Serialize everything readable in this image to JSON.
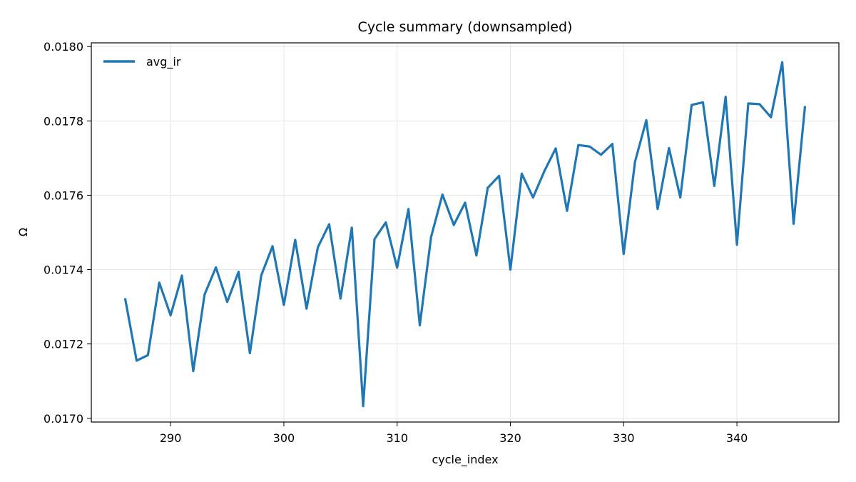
{
  "chart_data": {
    "type": "line",
    "title": "Cycle summary (downsampled)",
    "xlabel": "cycle_index",
    "ylabel": "Ω",
    "xlim": [
      283,
      349
    ],
    "ylim": [
      0.01699,
      0.01801
    ],
    "xticks": [
      290,
      300,
      310,
      320,
      330,
      340
    ],
    "xtick_labels": [
      "290",
      "300",
      "310",
      "320",
      "330",
      "340"
    ],
    "yticks": [
      0.017,
      0.0172,
      0.0174,
      0.0176,
      0.0178,
      0.018
    ],
    "ytick_labels": [
      "0.0170",
      "0.0172",
      "0.0174",
      "0.0176",
      "0.0178",
      "0.0180"
    ],
    "grid": true,
    "legend_position": "top-left",
    "colors": {
      "series": "#1f77b4",
      "grid": "#e6e6e6",
      "axes": "#000000"
    },
    "series": [
      {
        "name": "avg_ir",
        "x": [
          286,
          287,
          288,
          289,
          290,
          291,
          292,
          293,
          294,
          295,
          296,
          297,
          298,
          299,
          300,
          301,
          302,
          303,
          304,
          305,
          306,
          307,
          308,
          309,
          310,
          311,
          312,
          313,
          314,
          315,
          316,
          317,
          318,
          319,
          320,
          321,
          322,
          323,
          324,
          325,
          326,
          327,
          328,
          329,
          330,
          331,
          332,
          333,
          334,
          335,
          336,
          337,
          338,
          339,
          340,
          341,
          342,
          343,
          344,
          345,
          346
        ],
        "values": [
          0.01732,
          0.017155,
          0.01717,
          0.017365,
          0.017277,
          0.017384,
          0.017127,
          0.017333,
          0.017406,
          0.017313,
          0.017394,
          0.017175,
          0.017384,
          0.017463,
          0.017305,
          0.01748,
          0.017295,
          0.01746,
          0.017522,
          0.017322,
          0.017513,
          0.017033,
          0.017482,
          0.017527,
          0.017405,
          0.017563,
          0.01725,
          0.017488,
          0.017602,
          0.01752,
          0.01758,
          0.017438,
          0.01762,
          0.017652,
          0.0174,
          0.017658,
          0.017594,
          0.017665,
          0.017726,
          0.017558,
          0.017735,
          0.017731,
          0.017709,
          0.017738,
          0.017442,
          0.01769,
          0.017802,
          0.017563,
          0.017727,
          0.017594,
          0.017843,
          0.01785,
          0.017625,
          0.017865,
          0.017467,
          0.017847,
          0.017845,
          0.01781,
          0.017958,
          0.017523,
          0.017837
        ]
      }
    ]
  }
}
